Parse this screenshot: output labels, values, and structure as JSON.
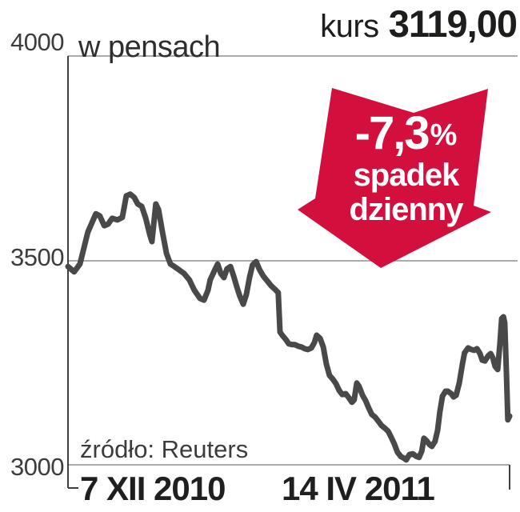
{
  "header": {
    "price_prefix": "kurs",
    "price_value": "3119,00"
  },
  "axis": {
    "unit_label": "w pensach",
    "yticks": [
      "4000",
      "3500",
      "3000"
    ],
    "xticks": [
      "7 XII 2010",
      "14 IV 2011"
    ]
  },
  "source": {
    "label": "źródło: Reuters"
  },
  "badge": {
    "value": "-7,3",
    "percent": "%",
    "caption_line1": "spadek",
    "caption_line2": "dzienny",
    "color": "#d30f3d"
  },
  "colors": {
    "line": "#494949",
    "grid": "#8f8f8f",
    "axis": "#3f3f3f"
  },
  "chart_data": {
    "type": "line",
    "title": "kurs",
    "ylabel": "w pensach",
    "ylim": [
      3000,
      4000
    ],
    "yticks": [
      4000,
      3500,
      3000
    ],
    "x_range": [
      "7 XII 2010",
      "14 IV 2011"
    ],
    "grid": true,
    "legend": "none",
    "last_value": 3119.0,
    "daily_change_pct": -7.3,
    "annotation": "-7,3% spadek dzienny",
    "series": [
      {
        "name": "kurs",
        "x_is_fraction_of_date_range": true,
        "points": [
          [
            0.0,
            3485
          ],
          [
            0.014,
            3472
          ],
          [
            0.027,
            3491
          ],
          [
            0.045,
            3569
          ],
          [
            0.063,
            3614
          ],
          [
            0.072,
            3609
          ],
          [
            0.082,
            3585
          ],
          [
            0.091,
            3589
          ],
          [
            0.1,
            3603
          ],
          [
            0.112,
            3599
          ],
          [
            0.123,
            3605
          ],
          [
            0.132,
            3658
          ],
          [
            0.141,
            3662
          ],
          [
            0.15,
            3654
          ],
          [
            0.158,
            3638
          ],
          [
            0.167,
            3632
          ],
          [
            0.176,
            3603
          ],
          [
            0.185,
            3564
          ],
          [
            0.19,
            3546
          ],
          [
            0.199,
            3638
          ],
          [
            0.205,
            3624
          ],
          [
            0.214,
            3569
          ],
          [
            0.223,
            3517
          ],
          [
            0.232,
            3491
          ],
          [
            0.241,
            3485
          ],
          [
            0.25,
            3478
          ],
          [
            0.263,
            3468
          ],
          [
            0.275,
            3452
          ],
          [
            0.286,
            3427
          ],
          [
            0.299,
            3407
          ],
          [
            0.308,
            3403
          ],
          [
            0.317,
            3427
          ],
          [
            0.322,
            3452
          ],
          [
            0.332,
            3476
          ],
          [
            0.339,
            3491
          ],
          [
            0.346,
            3468
          ],
          [
            0.353,
            3458
          ],
          [
            0.36,
            3479
          ],
          [
            0.368,
            3485
          ],
          [
            0.375,
            3462
          ],
          [
            0.382,
            3436
          ],
          [
            0.389,
            3413
          ],
          [
            0.397,
            3393
          ],
          [
            0.404,
            3417
          ],
          [
            0.411,
            3458
          ],
          [
            0.418,
            3489
          ],
          [
            0.426,
            3497
          ],
          [
            0.433,
            3479
          ],
          [
            0.442,
            3462
          ],
          [
            0.451,
            3450
          ],
          [
            0.46,
            3438
          ],
          [
            0.469,
            3429
          ],
          [
            0.476,
            3421
          ],
          [
            0.48,
            3325
          ],
          [
            0.485,
            3317
          ],
          [
            0.493,
            3307
          ],
          [
            0.5,
            3296
          ],
          [
            0.507,
            3294
          ],
          [
            0.514,
            3294
          ],
          [
            0.522,
            3290
          ],
          [
            0.529,
            3288
          ],
          [
            0.536,
            3284
          ],
          [
            0.543,
            3282
          ],
          [
            0.551,
            3286
          ],
          [
            0.558,
            3299
          ],
          [
            0.563,
            3317
          ],
          [
            0.571,
            3309
          ],
          [
            0.578,
            3288
          ],
          [
            0.585,
            3247
          ],
          [
            0.592,
            3219
          ],
          [
            0.6,
            3209
          ],
          [
            0.607,
            3198
          ],
          [
            0.614,
            3182
          ],
          [
            0.621,
            3172
          ],
          [
            0.629,
            3174
          ],
          [
            0.636,
            3164
          ],
          [
            0.643,
            3153
          ],
          [
            0.648,
            3159
          ],
          [
            0.654,
            3200
          ],
          [
            0.659,
            3192
          ],
          [
            0.667,
            3170
          ],
          [
            0.674,
            3157
          ],
          [
            0.681,
            3139
          ],
          [
            0.688,
            3123
          ],
          [
            0.696,
            3116
          ],
          [
            0.703,
            3106
          ],
          [
            0.71,
            3096
          ],
          [
            0.717,
            3090
          ],
          [
            0.725,
            3082
          ],
          [
            0.732,
            3067
          ],
          [
            0.739,
            3051
          ],
          [
            0.746,
            3031
          ],
          [
            0.754,
            3020
          ],
          [
            0.761,
            3016
          ],
          [
            0.766,
            3012
          ],
          [
            0.773,
            3025
          ],
          [
            0.781,
            3027
          ],
          [
            0.788,
            3021
          ],
          [
            0.795,
            3018
          ],
          [
            0.801,
            3033
          ],
          [
            0.806,
            3065
          ],
          [
            0.812,
            3059
          ],
          [
            0.819,
            3049
          ],
          [
            0.824,
            3045
          ],
          [
            0.831,
            3057
          ],
          [
            0.837,
            3084
          ],
          [
            0.842,
            3129
          ],
          [
            0.848,
            3168
          ],
          [
            0.855,
            3180
          ],
          [
            0.86,
            3180
          ],
          [
            0.868,
            3174
          ],
          [
            0.873,
            3166
          ],
          [
            0.879,
            3170
          ],
          [
            0.886,
            3200
          ],
          [
            0.893,
            3245
          ],
          [
            0.898,
            3274
          ],
          [
            0.906,
            3286
          ],
          [
            0.913,
            3282
          ],
          [
            0.92,
            3280
          ],
          [
            0.926,
            3284
          ],
          [
            0.933,
            3272
          ],
          [
            0.938,
            3256
          ],
          [
            0.944,
            3254
          ],
          [
            0.951,
            3266
          ],
          [
            0.957,
            3272
          ],
          [
            0.962,
            3262
          ],
          [
            0.967,
            3241
          ],
          [
            0.973,
            3233
          ],
          [
            0.978,
            3296
          ],
          [
            0.982,
            3358
          ],
          [
            0.986,
            3362
          ],
          [
            0.989,
            3348
          ],
          [
            0.993,
            3221
          ],
          [
            0.996,
            3110
          ],
          [
            1.0,
            3119
          ]
        ]
      }
    ]
  }
}
